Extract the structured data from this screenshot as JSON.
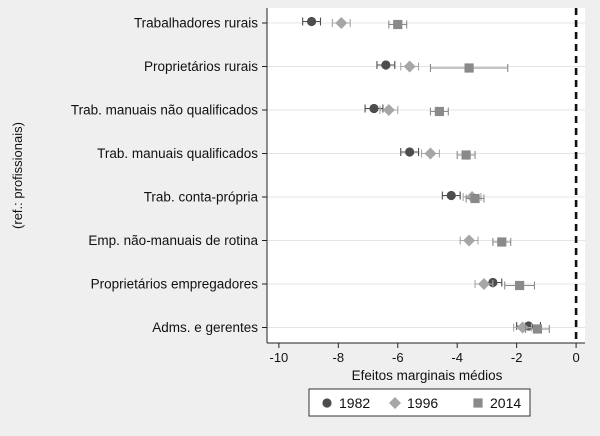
{
  "chart_data": {
    "type": "scatter",
    "xlabel": "Efeitos marginais médios",
    "ylabel": "(ref.: profissionais)",
    "xlim": [
      -10.4,
      0.3
    ],
    "xticks": [
      -10,
      -8,
      -6,
      -4,
      -2,
      0
    ],
    "tick_labels": [
      "-10",
      "-8",
      "-6",
      "-4",
      "-2",
      "0"
    ],
    "reference_line": 0,
    "grid": "horizontal",
    "legend_position": "bottom",
    "categories": [
      "Trabalhadores rurais",
      "Proprietários rurais",
      "Trab. manuais não qualificados",
      "Trab. manuais qualificados",
      "Trab. conta-própria",
      "Emp. não-manuais de rotina",
      "Proprietários empregadores",
      "Adms. e gerentes"
    ],
    "series": [
      {
        "name": "1982",
        "marker": "circle",
        "color": "#4d4d4d",
        "values": [
          -8.9,
          -6.4,
          -6.8,
          -5.6,
          -4.2,
          null,
          -2.8,
          -1.6
        ],
        "ci": [
          [
            -9.2,
            -8.6
          ],
          [
            -6.7,
            -6.1
          ],
          [
            -7.1,
            -6.5
          ],
          [
            -5.9,
            -5.3
          ],
          [
            -4.5,
            -3.9
          ],
          null,
          [
            -3.1,
            -2.5
          ],
          [
            -2.0,
            -1.2
          ]
        ]
      },
      {
        "name": "1996",
        "marker": "diamond",
        "color": "#a6a6a6",
        "values": [
          -7.9,
          -5.6,
          -6.3,
          -4.9,
          -3.5,
          -3.6,
          -3.1,
          -1.8
        ],
        "ci": [
          [
            -8.2,
            -7.6
          ],
          [
            -5.9,
            -5.3
          ],
          [
            -6.6,
            -6.0
          ],
          [
            -5.2,
            -4.6
          ],
          [
            -3.8,
            -3.2
          ],
          [
            -3.9,
            -3.3
          ],
          [
            -3.4,
            -2.8
          ],
          [
            -2.1,
            -1.5
          ]
        ]
      },
      {
        "name": "2014",
        "marker": "square",
        "color": "#8a8a8a",
        "values": [
          -6.0,
          -3.6,
          -4.6,
          -3.7,
          -3.4,
          -2.5,
          -1.9,
          -1.3
        ],
        "ci": [
          [
            -6.3,
            -5.7
          ],
          [
            -4.9,
            -2.3
          ],
          [
            -4.9,
            -4.3
          ],
          [
            -4.0,
            -3.4
          ],
          [
            -3.7,
            -3.1
          ],
          [
            -2.8,
            -2.2
          ],
          [
            -2.4,
            -1.4
          ],
          [
            -1.7,
            -0.9
          ]
        ]
      }
    ]
  }
}
